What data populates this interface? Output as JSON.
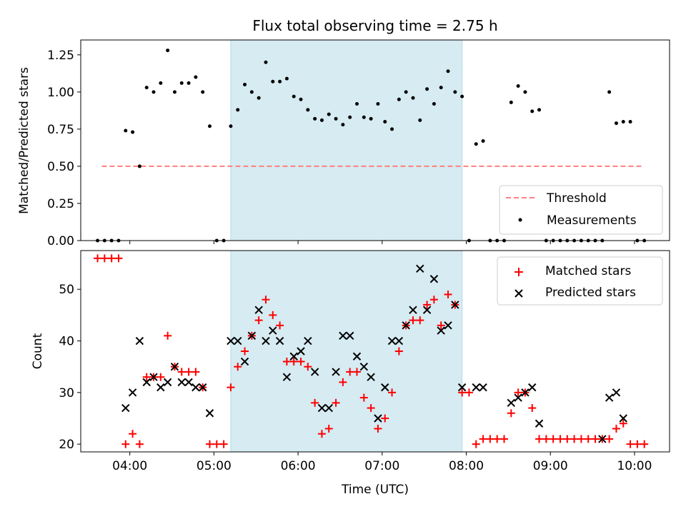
{
  "figure": {
    "title": "Flux total observing time = 2.75 h",
    "xlabel": "Time (UTC)",
    "x_ticks": [
      "04:00",
      "05:00",
      "06:00",
      "07:00",
      "08:00",
      "09:00",
      "10:00"
    ]
  },
  "colors": {
    "background": "#ffffff",
    "shade": "#add8e6",
    "threshold": "#ff7f7f",
    "measurement": "#000000",
    "matched": "#ff0000",
    "predicted": "#000000"
  },
  "chart_data": [
    {
      "type": "scatter",
      "panel": "top",
      "ylabel": "Matched/Predicted stars",
      "xlim": [
        "03:25",
        "10:25"
      ],
      "ylim": [
        0,
        1.35
      ],
      "y_ticks": [
        "0.00",
        "0.25",
        "0.50",
        "0.75",
        "1.00",
        "1.25"
      ],
      "y_tick_values": [
        0,
        0.25,
        0.5,
        0.75,
        1.0,
        1.25
      ],
      "shaded_interval": [
        "05:12",
        "07:57"
      ],
      "legend_position": "lower-right",
      "threshold": {
        "name": "Threshold",
        "value": 0.5,
        "x_range": [
          "03:40",
          "10:05"
        ]
      },
      "measurements": {
        "name": "Measurements",
        "x": [
          "03:37",
          "03:42",
          "03:47",
          "03:52",
          "03:57",
          "04:02",
          "04:07",
          "04:12",
          "04:17",
          "04:22",
          "04:27",
          "04:32",
          "04:37",
          "04:42",
          "04:47",
          "04:52",
          "04:57",
          "05:02",
          "05:07",
          "05:12",
          "05:17",
          "05:22",
          "05:27",
          "05:32",
          "05:37",
          "05:42",
          "05:47",
          "05:52",
          "05:57",
          "06:02",
          "06:07",
          "06:12",
          "06:17",
          "06:22",
          "06:27",
          "06:32",
          "06:37",
          "06:42",
          "06:47",
          "06:52",
          "06:57",
          "07:02",
          "07:07",
          "07:12",
          "07:17",
          "07:22",
          "07:27",
          "07:32",
          "07:37",
          "07:42",
          "07:47",
          "07:52",
          "07:57",
          "08:02",
          "08:07",
          "08:12",
          "08:17",
          "08:22",
          "08:27",
          "08:32",
          "08:37",
          "08:42",
          "08:47",
          "08:52",
          "08:57",
          "09:02",
          "09:07",
          "09:12",
          "09:17",
          "09:22",
          "09:27",
          "09:32",
          "09:37",
          "09:42",
          "09:47",
          "09:52",
          "09:57",
          "10:02",
          "10:07"
        ],
        "y": [
          0,
          0,
          0,
          0,
          0.74,
          0.73,
          0.5,
          1.03,
          1.0,
          1.06,
          1.28,
          1.0,
          1.06,
          1.06,
          1.1,
          1.0,
          0.77,
          0,
          0,
          0.77,
          0.88,
          1.05,
          1.0,
          0.96,
          1.2,
          1.07,
          1.07,
          1.09,
          0.97,
          0.95,
          0.88,
          0.82,
          0.81,
          0.85,
          0.82,
          0.78,
          0.83,
          0.92,
          0.83,
          0.82,
          0.92,
          0.8,
          0.75,
          0.95,
          1.0,
          0.96,
          0.81,
          1.02,
          0.92,
          1.03,
          1.14,
          1.0,
          0.97,
          0,
          0.65,
          0.67,
          0,
          0,
          0,
          0.93,
          1.04,
          1.0,
          0.87,
          0.88,
          0,
          0,
          0,
          0,
          0,
          0,
          0,
          0,
          0,
          1.0,
          0.79,
          0.8,
          0.8,
          0,
          0
        ]
      }
    },
    {
      "type": "scatter",
      "panel": "bottom",
      "ylabel": "Count",
      "xlim": [
        "03:25",
        "10:25"
      ],
      "ylim": [
        18.5,
        57.5
      ],
      "y_ticks": [
        "20",
        "30",
        "40",
        "50"
      ],
      "y_tick_values": [
        20,
        30,
        40,
        50
      ],
      "shaded_interval": [
        "05:12",
        "07:57"
      ],
      "legend_position": "upper-right",
      "series": [
        {
          "name": "Matched stars",
          "marker": "plus",
          "x": [
            "03:37",
            "03:42",
            "03:47",
            "03:52",
            "03:57",
            "04:02",
            "04:07",
            "04:12",
            "04:17",
            "04:22",
            "04:27",
            "04:32",
            "04:37",
            "04:42",
            "04:47",
            "04:52",
            "04:57",
            "05:02",
            "05:07",
            "05:12",
            "05:17",
            "05:22",
            "05:27",
            "05:32",
            "05:37",
            "05:42",
            "05:47",
            "05:52",
            "05:57",
            "06:02",
            "06:07",
            "06:12",
            "06:17",
            "06:22",
            "06:27",
            "06:32",
            "06:37",
            "06:42",
            "06:47",
            "06:52",
            "06:57",
            "07:02",
            "07:07",
            "07:12",
            "07:17",
            "07:22",
            "07:27",
            "07:32",
            "07:37",
            "07:42",
            "07:47",
            "07:52",
            "07:57",
            "08:02",
            "08:07",
            "08:12",
            "08:17",
            "08:22",
            "08:27",
            "08:32",
            "08:37",
            "08:42",
            "08:47",
            "08:52",
            "08:57",
            "09:02",
            "09:07",
            "09:12",
            "09:17",
            "09:22",
            "09:27",
            "09:32",
            "09:37",
            "09:42",
            "09:47",
            "09:52",
            "09:57",
            "10:02",
            "10:07"
          ],
          "y": [
            56,
            56,
            56,
            56,
            20,
            22,
            20,
            33,
            33,
            33,
            41,
            35,
            34,
            34,
            34,
            31,
            20,
            20,
            20,
            31,
            35,
            38,
            41,
            44,
            48,
            45,
            43,
            36,
            36,
            36,
            35,
            28,
            22,
            23,
            28,
            32,
            34,
            34,
            29,
            27,
            23,
            25,
            30,
            38,
            43,
            44,
            44,
            47,
            48,
            43,
            49,
            47,
            30,
            30,
            20,
            21,
            21,
            21,
            21,
            26,
            30,
            30,
            27,
            21,
            21,
            21,
            21,
            21,
            21,
            21,
            21,
            21,
            21,
            21,
            23,
            24,
            20,
            20,
            20
          ]
        },
        {
          "name": "Predicted stars",
          "marker": "x",
          "x": [
            "03:57",
            "04:02",
            "04:07",
            "04:12",
            "04:17",
            "04:22",
            "04:27",
            "04:32",
            "04:37",
            "04:42",
            "04:47",
            "04:52",
            "04:57",
            "05:12",
            "05:17",
            "05:22",
            "05:27",
            "05:32",
            "05:37",
            "05:42",
            "05:47",
            "05:52",
            "05:57",
            "06:02",
            "06:07",
            "06:12",
            "06:17",
            "06:22",
            "06:27",
            "06:32",
            "06:37",
            "06:42",
            "06:47",
            "06:52",
            "06:57",
            "07:02",
            "07:07",
            "07:12",
            "07:17",
            "07:22",
            "07:27",
            "07:32",
            "07:37",
            "07:42",
            "07:47",
            "07:52",
            "07:57",
            "08:07",
            "08:12",
            "08:32",
            "08:37",
            "08:42",
            "08:47",
            "08:52",
            "09:37",
            "09:42",
            "09:47",
            "09:52"
          ],
          "y": [
            27,
            30,
            40,
            32,
            33,
            31,
            32,
            35,
            32,
            32,
            31,
            31,
            26,
            40,
            40,
            36,
            41,
            46,
            40,
            42,
            40,
            33,
            37,
            38,
            40,
            34,
            27,
            27,
            34,
            41,
            41,
            37,
            35,
            33,
            25,
            31,
            40,
            40,
            43,
            46,
            54,
            46,
            52,
            42,
            43,
            47,
            31,
            31,
            31,
            28,
            29,
            30,
            31,
            24,
            21,
            29,
            30,
            25
          ]
        }
      ]
    }
  ]
}
